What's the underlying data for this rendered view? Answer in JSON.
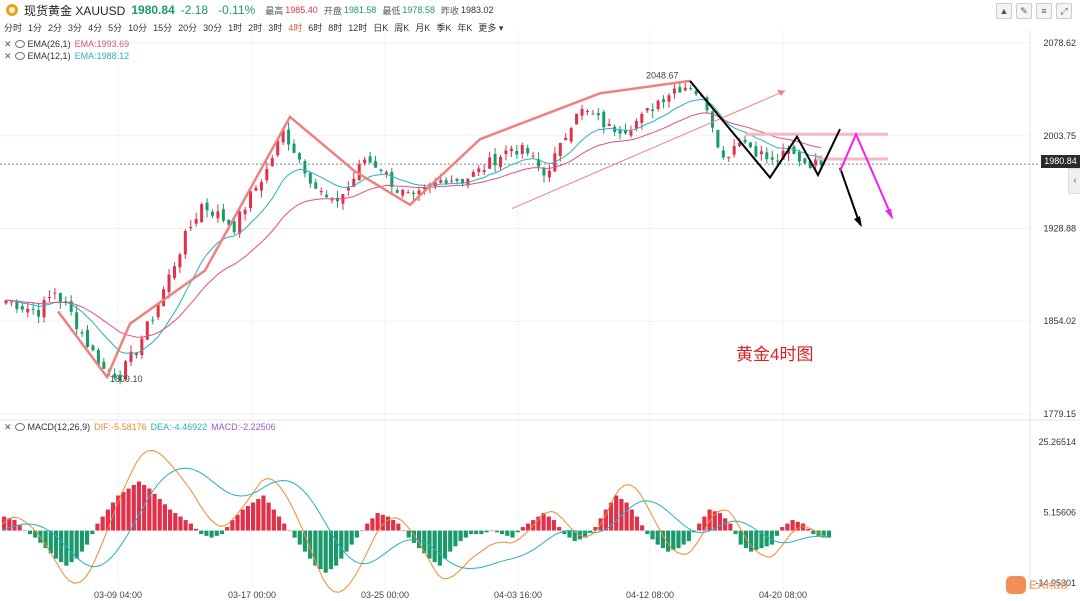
{
  "header": {
    "title": "现货黄金 XAUUSD",
    "price": "1980.84",
    "change": "-2.18",
    "change_pct": "-0.11%",
    "high_label": "最高",
    "high": "1985.40",
    "open_label": "开盘",
    "open": "1981.58",
    "low_label": "最低",
    "low": "1978.58",
    "prev_label": "昨收",
    "prev": "1983.02"
  },
  "periods": [
    "分时",
    "1分",
    "2分",
    "3分",
    "4分",
    "5分",
    "10分",
    "15分",
    "20分",
    "30分",
    "1时",
    "2时",
    "3时",
    "4时",
    "6时",
    "8时",
    "12时",
    "日K",
    "周K",
    "月K",
    "季K",
    "年K",
    "更多"
  ],
  "active_period": "4时",
  "indicators": {
    "ema26": {
      "name": "EMA(26,1)",
      "value": "EMA:1993.69"
    },
    "ema12": {
      "name": "EMA(12,1)",
      "value": "EMA:1988.12"
    },
    "macd": {
      "name": "MACD(12,26,9)",
      "dif": "DIF:-5.58176",
      "dea": "DEA:-4.46922",
      "macd": "MACD:-2.22506"
    }
  },
  "colors": {
    "up": "#e0304a",
    "down": "#1a9a6a",
    "ema12": "#2ab0c0",
    "ema26": "#e05080",
    "pattern": "#f08080",
    "arrow_black": "#000000",
    "arrow_magenta": "#ee22ee",
    "annotation": "#e02020",
    "dif": "#f08a30",
    "dea": "#2ab0c0"
  },
  "last_price_badge": "1980.84",
  "annotation": "黄金4时图",
  "watermark": "EAhub",
  "chart_data": [
    {
      "type": "candlestick",
      "y_ticks": [
        "2078.62",
        "2003.75",
        "1928.88",
        "1854.02",
        "1779.15"
      ],
      "ylim": [
        1779.15,
        2078.62
      ],
      "x_ticks": [
        "03-09 04:00",
        "03-17 00:00",
        "03-25 00:00",
        "04-03 16:00",
        "04-12 08:00",
        "04-20 08:00"
      ],
      "annotations": [
        {
          "label": "2048.67",
          "price": 2048.67
        },
        {
          "label": "1809.10",
          "price": 1809.1
        }
      ],
      "pattern_points": [
        1862,
        1809,
        1852,
        1895,
        2019,
        1975,
        1948,
        2001,
        2038,
        2048,
        1970,
        2003,
        1972,
        2009
      ],
      "close": [
        1871,
        1866,
        1862,
        1878,
        1860,
        1836,
        1815,
        1810,
        1832,
        1858,
        1890,
        1922,
        1948,
        1940,
        1930,
        1955,
        1976,
        2008,
        1985,
        1962,
        1948,
        1962,
        1985,
        1978,
        1960,
        1952,
        1962,
        1970,
        1968,
        1975,
        1985,
        1994,
        1990,
        1972,
        1994,
        2025,
        2020,
        2010,
        2010,
        2018,
        2032,
        2042,
        2045,
        2028,
        1985,
        2002,
        1992,
        1982,
        1990,
        1983,
        1980
      ]
    },
    {
      "type": "macd",
      "y_ticks": [
        "25.26514",
        "5.15606",
        "-14.95301"
      ],
      "ylim": [
        -14.95301,
        25.26514
      ],
      "bars": [
        4,
        3,
        0,
        -2,
        -5,
        -8,
        -10,
        -8,
        -4,
        2,
        6,
        10,
        12,
        14,
        12,
        9,
        6,
        4,
        2,
        -1,
        -2,
        -1,
        3,
        6,
        8,
        10,
        6,
        2,
        -2,
        -6,
        -10,
        -12,
        -10,
        -6,
        -2,
        2,
        5,
        4,
        2,
        -2,
        -5,
        -8,
        -10,
        -6,
        -3,
        -1,
        -1,
        0,
        -1,
        -2,
        1,
        3,
        5,
        3,
        -1,
        -3,
        -2,
        1,
        6,
        10,
        8,
        4,
        -1,
        -4,
        -6,
        -5,
        -3,
        2,
        6,
        5,
        2,
        -4,
        -6,
        -5,
        -4,
        1,
        3,
        2,
        -1,
        -2
      ]
    }
  ]
}
